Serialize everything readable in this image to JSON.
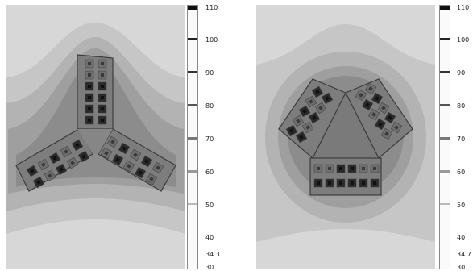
{
  "panels": [
    {
      "id": "left",
      "colorbar_ticks": [
        "110",
        "100",
        "90",
        "80",
        "70",
        "60",
        "50",
        "40",
        "34.3",
        "30"
      ]
    },
    {
      "id": "right",
      "colorbar_ticks": [
        "110",
        "100",
        "90",
        "80",
        "70",
        "60",
        "50",
        "40",
        "34.7",
        "30"
      ]
    }
  ],
  "colors": {
    "background": "#d7d7d7",
    "band_1": "#c7c7c7",
    "band_2": "#b2b2b2",
    "band_3": "#9d9d9d",
    "band_4": "#8b8b8b",
    "band_5": "#7c7c7c",
    "module_fill": "#8a8a8a",
    "module_border": "#3c3c3c",
    "hotspot": "#1b1b1b"
  }
}
